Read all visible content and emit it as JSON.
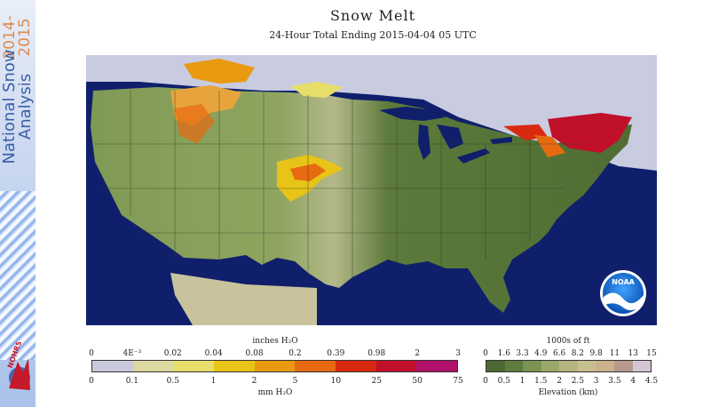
{
  "sidebar": {
    "title_line1": "National Snow",
    "title_line2": "Analysis",
    "year1": "2014-",
    "year2": "2015",
    "logo_text": "NOHRSC"
  },
  "header": {
    "title": "Snow Melt",
    "subtitle": "24-Hour Total Ending 2015-04-04 05 UTC"
  },
  "map": {
    "region": "Contiguous United States",
    "ocean_color": "#0f1f6b",
    "snow_free_land_colors": [
      "#5c7a3a",
      "#7f9a55",
      "#b4b888"
    ],
    "snow_cover_color": "#c9cbe0",
    "melt_areas": [
      "Northern Rockies",
      "Northern Plains",
      "Colorado / Wyoming",
      "Great Lakes",
      "New England"
    ],
    "logo": "NOAA"
  },
  "melt_legend": {
    "top_unit": "inches H₂O",
    "top_ticks": [
      "0",
      "4E⁻³",
      "0.02",
      "0.04",
      "0.08",
      "0.2",
      "0.39",
      "0.98",
      "2",
      "3"
    ],
    "bottom_ticks": [
      "0",
      "0.1",
      "0.5",
      "1",
      "2",
      "5",
      "10",
      "25",
      "50",
      "75"
    ],
    "bottom_unit": "mm H₂O",
    "colors": [
      "#c9c9dc",
      "#dcd8a0",
      "#e6de6a",
      "#e8c318",
      "#e99a10",
      "#e76a10",
      "#d82a10",
      "#c0102a",
      "#b0106a"
    ]
  },
  "elevation_legend": {
    "top_unit": "1000s of ft",
    "top_ticks": [
      "0",
      "1.6",
      "3.3",
      "4.9",
      "6.6",
      "8.2",
      "9.8",
      "11",
      "13",
      "15"
    ],
    "bottom_ticks": [
      "0",
      "0.5",
      "1",
      "1.5",
      "2",
      "2.5",
      "3",
      "3.5",
      "4",
      "4.5"
    ],
    "bottom_unit": "Elevation (km)",
    "colors": [
      "#4e6a34",
      "#5e7d3e",
      "#7a9452",
      "#9aa86a",
      "#b5b47e",
      "#c8bf90",
      "#c9b28a",
      "#b79a8c",
      "#d3c6d4"
    ]
  }
}
